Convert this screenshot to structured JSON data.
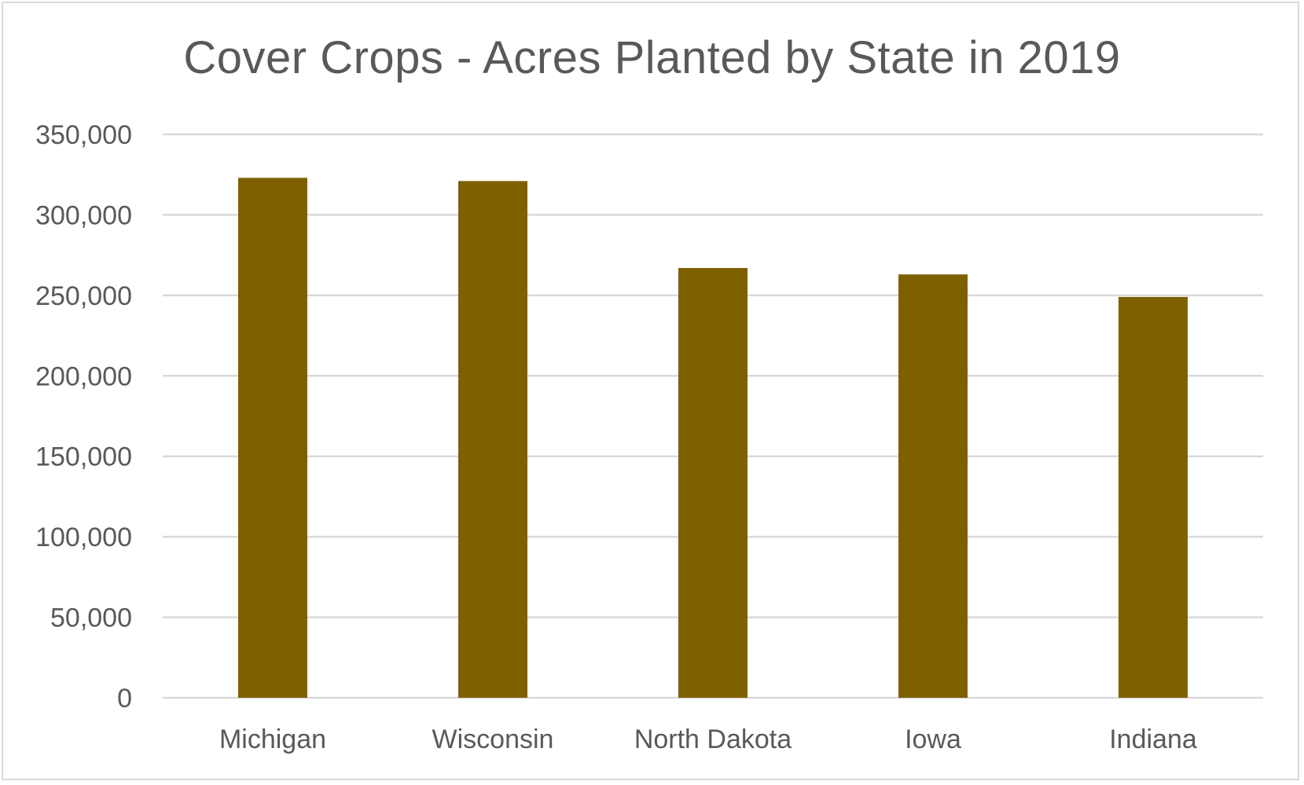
{
  "chart_data": {
    "type": "bar",
    "title": "Cover Crops - Acres Planted by State in 2019",
    "categories": [
      "Michigan",
      "Wisconsin",
      "North Dakota",
      "Iowa",
      "Indiana"
    ],
    "values": [
      323000,
      321000,
      267000,
      263000,
      249000
    ],
    "ylim": [
      0,
      350000
    ],
    "yticks": [
      0,
      50000,
      100000,
      150000,
      200000,
      250000,
      300000,
      350000
    ],
    "ytick_labels": [
      "0",
      "50,000",
      "100,000",
      "150,000",
      "200,000",
      "250,000",
      "300,000",
      "350,000"
    ],
    "grid": true,
    "legend": "none",
    "bar_color": "#7f6000",
    "grid_color": "#d9d9d9",
    "text_color": "#595959"
  }
}
